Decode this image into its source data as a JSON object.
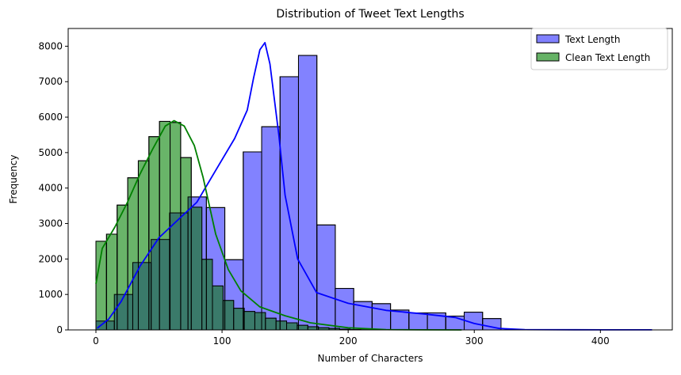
{
  "chart_data": {
    "type": "histogram",
    "title": "Distribution of Tweet Text Lengths",
    "xlabel": "Number of Characters",
    "ylabel": "Frequency",
    "xlim": [
      -22,
      457
    ],
    "ylim": [
      0,
      8500
    ],
    "xticks": [
      0,
      100,
      200,
      300,
      400
    ],
    "yticks": [
      0,
      1000,
      2000,
      3000,
      4000,
      5000,
      6000,
      7000,
      8000
    ],
    "grid": false,
    "legend_position": "top-right",
    "series": [
      {
        "name": "Text Length",
        "fill": "#8080ff",
        "line": "#0000ff",
        "bin_width": 14.6,
        "bin_start": 0,
        "values": [
          250,
          1000,
          1900,
          2550,
          3300,
          3750,
          3450,
          1980,
          5020,
          5730,
          7140,
          7740,
          2960,
          1170,
          800,
          740,
          560,
          480,
          480,
          390,
          500,
          320
        ],
        "kde": [
          [
            1,
            50
          ],
          [
            10,
            300
          ],
          [
            20,
            800
          ],
          [
            35,
            1800
          ],
          [
            50,
            2600
          ],
          [
            65,
            3100
          ],
          [
            80,
            3600
          ],
          [
            95,
            4500
          ],
          [
            110,
            5400
          ],
          [
            120,
            6200
          ],
          [
            125,
            7100
          ],
          [
            130,
            7900
          ],
          [
            134,
            8100
          ],
          [
            138,
            7500
          ],
          [
            145,
            5500
          ],
          [
            150,
            3800
          ],
          [
            160,
            2000
          ],
          [
            175,
            1050
          ],
          [
            200,
            750
          ],
          [
            230,
            550
          ],
          [
            260,
            450
          ],
          [
            285,
            350
          ],
          [
            300,
            180
          ],
          [
            320,
            40
          ],
          [
            340,
            10
          ],
          [
            380,
            5
          ],
          [
            441,
            2
          ]
        ]
      },
      {
        "name": "Clean Text Length",
        "fill": "#66b266",
        "line": "#008000",
        "bin_width": 8.4,
        "bin_start": 0,
        "values": [
          2500,
          2700,
          3520,
          4290,
          4770,
          5450,
          5880,
          5850,
          4860,
          3460,
          1990,
          1240,
          830,
          610,
          520,
          490,
          330,
          250,
          200,
          130,
          90,
          60,
          40,
          20,
          10,
          5
        ],
        "kde": [
          [
            0,
            1300
          ],
          [
            5,
            2300
          ],
          [
            15,
            2900
          ],
          [
            25,
            3600
          ],
          [
            35,
            4400
          ],
          [
            45,
            5100
          ],
          [
            55,
            5750
          ],
          [
            62,
            5900
          ],
          [
            70,
            5750
          ],
          [
            78,
            5200
          ],
          [
            85,
            4300
          ],
          [
            95,
            2700
          ],
          [
            105,
            1700
          ],
          [
            115,
            1100
          ],
          [
            130,
            650
          ],
          [
            150,
            400
          ],
          [
            170,
            200
          ],
          [
            200,
            60
          ],
          [
            230,
            10
          ],
          [
            260,
            3
          ],
          [
            290,
            0
          ]
        ]
      }
    ]
  }
}
